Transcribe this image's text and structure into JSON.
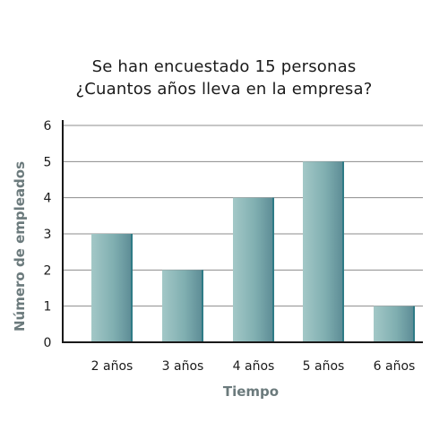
{
  "chart_data": {
    "type": "bar",
    "title": [
      "Se han encuestado 15 personas",
      "¿Cuantos años lleva en la empresa?"
    ],
    "xlabel": "Tiempo",
    "ylabel": "Número de empleados",
    "categories": [
      "2 años",
      "3 años",
      "4 años",
      "5 años",
      "6 años"
    ],
    "values": [
      3,
      2,
      4,
      5,
      1
    ],
    "ylim": [
      0,
      6
    ],
    "yticks": [
      "0",
      "1",
      "2",
      "3",
      "4",
      "5",
      "6"
    ],
    "grid": true,
    "legend": "none",
    "colors": {
      "bar_light": "#a3c8c7",
      "bar_mid": "#7faeb0",
      "bar_dark": "#5b8a94",
      "bar_edge": "#2e7b86",
      "axis_label": "#6b7a7c",
      "grid": "#8c8c8c",
      "axis": "#1a1a1a"
    }
  }
}
